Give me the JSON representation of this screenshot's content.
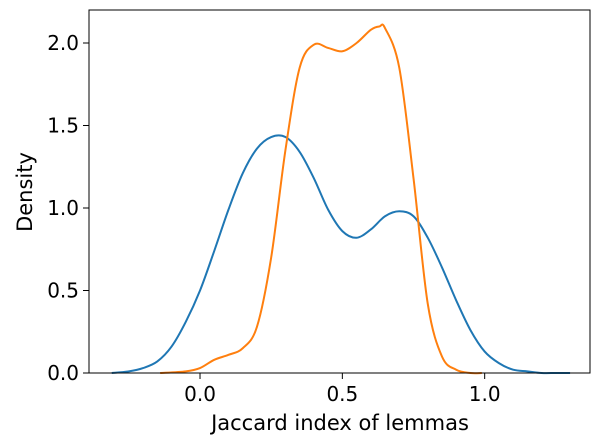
{
  "chart_data": {
    "type": "line",
    "title": "",
    "xlabel": "Jaccard index of lemmas",
    "ylabel": "Density",
    "xlim": [
      -0.39,
      1.37
    ],
    "ylim": [
      0,
      2.2
    ],
    "xticks": [
      0.0,
      0.5,
      1.0
    ],
    "xtick_labels": [
      "0.0",
      "0.5",
      "1.0"
    ],
    "yticks": [
      0.0,
      0.5,
      1.0,
      1.5,
      2.0
    ],
    "ytick_labels": [
      "0.0",
      "0.5",
      "1.0",
      "1.5",
      "2.0"
    ],
    "grid": false,
    "legend": null,
    "series": [
      {
        "color": "#1f77b4",
        "x": [
          -0.31,
          -0.25,
          -0.2,
          -0.15,
          -0.1,
          -0.05,
          0.0,
          0.05,
          0.1,
          0.15,
          0.2,
          0.25,
          0.3,
          0.35,
          0.4,
          0.45,
          0.5,
          0.55,
          0.6,
          0.65,
          0.7,
          0.75,
          0.8,
          0.85,
          0.9,
          0.95,
          1.0,
          1.05,
          1.1,
          1.15,
          1.2,
          1.25,
          1.3
        ],
        "y": [
          0.0,
          0.01,
          0.03,
          0.07,
          0.16,
          0.31,
          0.5,
          0.74,
          0.99,
          1.21,
          1.36,
          1.43,
          1.43,
          1.34,
          1.18,
          0.99,
          0.86,
          0.82,
          0.87,
          0.95,
          0.98,
          0.95,
          0.82,
          0.64,
          0.44,
          0.26,
          0.13,
          0.06,
          0.02,
          0.01,
          0.0,
          0.0,
          0.0
        ]
      },
      {
        "color": "#ff7f0e",
        "x": [
          -0.14,
          -0.05,
          0.0,
          0.05,
          0.1,
          0.15,
          0.2,
          0.25,
          0.3,
          0.35,
          0.4,
          0.45,
          0.5,
          0.55,
          0.6,
          0.63,
          0.65,
          0.7,
          0.75,
          0.8,
          0.85,
          0.9,
          0.95,
          0.99
        ],
        "y": [
          0.0,
          0.01,
          0.03,
          0.08,
          0.11,
          0.15,
          0.28,
          0.7,
          1.35,
          1.85,
          1.99,
          1.97,
          1.95,
          2.0,
          2.08,
          2.1,
          2.09,
          1.85,
          1.18,
          0.42,
          0.1,
          0.02,
          0.0,
          0.0
        ]
      }
    ]
  }
}
